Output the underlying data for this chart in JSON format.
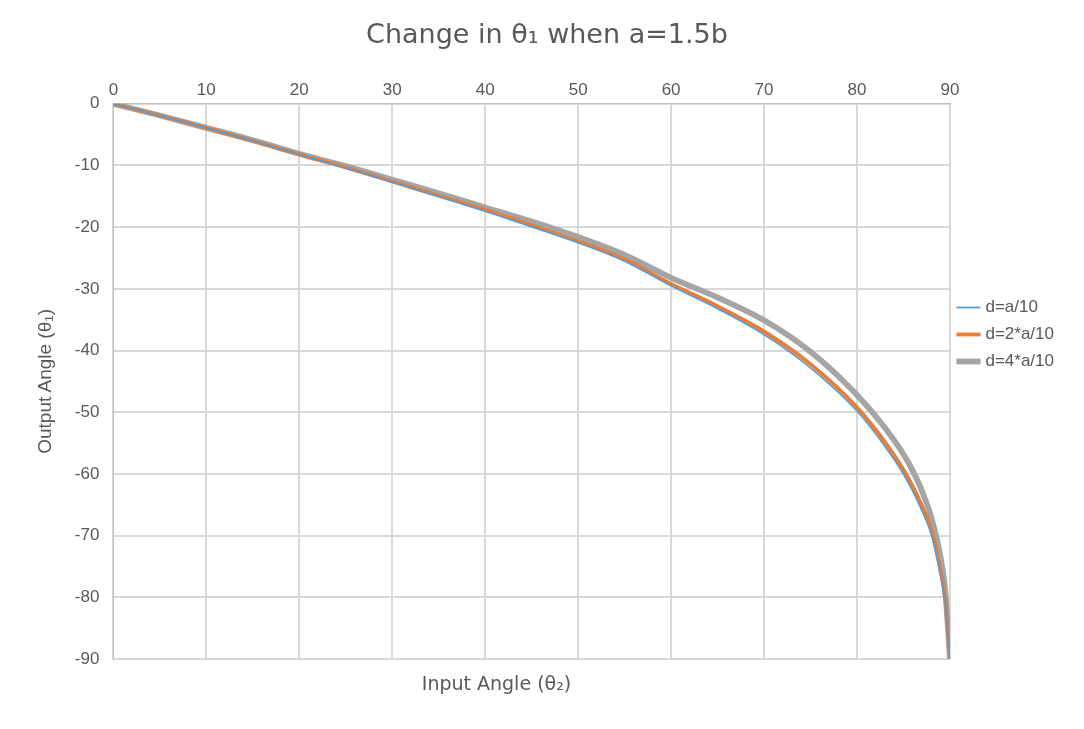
{
  "chart_data": {
    "type": "line",
    "title": "Change in θ₁ when a=1.5b",
    "xlabel": "Input Angle (θ₂)",
    "ylabel": "Output Angle (θ₁)",
    "x": [
      0,
      5,
      10,
      15,
      20,
      25,
      30,
      35,
      40,
      45,
      50,
      55,
      60,
      65,
      70,
      75,
      80,
      83,
      85,
      86,
      87,
      88,
      89,
      89.5,
      90
    ],
    "series": [
      {
        "name": "d=a/10",
        "color": "#5b9bd5",
        "values": [
          0,
          -1.9,
          -3.9,
          -6,
          -8.2,
          -10.4,
          -12.7,
          -15,
          -17.4,
          -19.9,
          -22.5,
          -25.5,
          -29.5,
          -33.2,
          -37.4,
          -42.8,
          -49.8,
          -55.5,
          -60,
          -62.8,
          -66,
          -69.8,
          -76.5,
          -81,
          -90
        ]
      },
      {
        "name": "d=2*a/10",
        "color": "#ed7d31",
        "values": [
          0,
          -1.9,
          -3.9,
          -6,
          -8.2,
          -10.3,
          -12.6,
          -14.9,
          -17.2,
          -19.7,
          -22.3,
          -25.2,
          -29.2,
          -32.8,
          -36.9,
          -42.2,
          -49.2,
          -54.8,
          -59.3,
          -62,
          -65.2,
          -69,
          -75.8,
          -80.5,
          -90
        ]
      },
      {
        "name": "d=4*a/10",
        "color": "#a5a5a5",
        "values": [
          0,
          -1.9,
          -3.9,
          -5.9,
          -8.1,
          -10.1,
          -12.3,
          -14.5,
          -16.8,
          -19.1,
          -21.6,
          -24.5,
          -28.2,
          -31.4,
          -35.1,
          -40.2,
          -47.2,
          -52.5,
          -56.8,
          -59.5,
          -62.8,
          -67.1,
          -73.6,
          -79,
          -90
        ]
      }
    ],
    "xlim": [
      0,
      90
    ],
    "xticks": [
      0,
      10,
      20,
      30,
      40,
      50,
      60,
      70,
      80,
      90
    ],
    "ylim": [
      -90,
      0
    ],
    "yticks": [
      -90,
      -80,
      -70,
      -60,
      -50,
      -40,
      -30,
      -20,
      -10,
      0
    ],
    "grid": true,
    "legend": "right",
    "marker": "none",
    "line_style": "solid"
  }
}
